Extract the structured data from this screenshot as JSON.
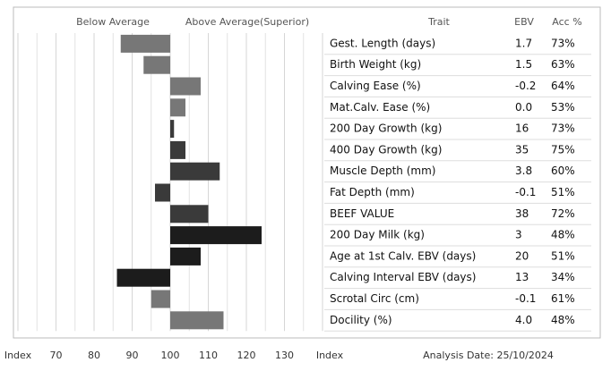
{
  "chart_data": {
    "type": "bar",
    "orientation": "horizontal",
    "below_label": "Below Average",
    "above_label": "Above Average(Superior)",
    "column_headers": [
      "Trait",
      "EBV",
      "Acc %"
    ],
    "categories": [
      "Gest. Length (days)",
      "Birth Weight (kg)",
      "Calving Ease (%)",
      "Mat.Calv. Ease (%)",
      "200 Day Growth (kg)",
      "400 Day Growth (kg)",
      "Muscle Depth (mm)",
      "Fat Depth (mm)",
      "BEEF VALUE",
      "200 Day Milk (kg)",
      "Age at 1st Calv. EBV (days)",
      "Calving Interval EBV (days)",
      "Scrotal Circ (cm)",
      "Docility (%)"
    ],
    "values": [
      87,
      93,
      108,
      104,
      101,
      104,
      113,
      96,
      110,
      124,
      108,
      86,
      95,
      114
    ],
    "colors": [
      "#777777",
      "#777777",
      "#777777",
      "#777777",
      "#3a3a3a",
      "#3a3a3a",
      "#3a3a3a",
      "#3a3a3a",
      "#3a3a3a",
      "#1c1c1c",
      "#1c1c1c",
      "#1c1c1c",
      "#777777",
      "#777777"
    ],
    "ebv": [
      "1.7",
      "1.5",
      "-0.2",
      "0.0",
      "16",
      "35",
      "3.8",
      "-0.1",
      "38",
      "3",
      "20",
      "13",
      "-0.1",
      "4.0"
    ],
    "acc": [
      "73%",
      "63%",
      "64%",
      "53%",
      "73%",
      "75%",
      "60%",
      "51%",
      "72%",
      "48%",
      "51%",
      "34%",
      "61%",
      "48%"
    ],
    "baseline": 100,
    "xlim": [
      60,
      140
    ],
    "xticks": [
      70,
      80,
      90,
      100,
      110,
      120,
      130
    ],
    "x_label_left": "Index",
    "x_label_right": "Index",
    "footer": "Analysis Date: 25/10/2024",
    "grid": true
  }
}
